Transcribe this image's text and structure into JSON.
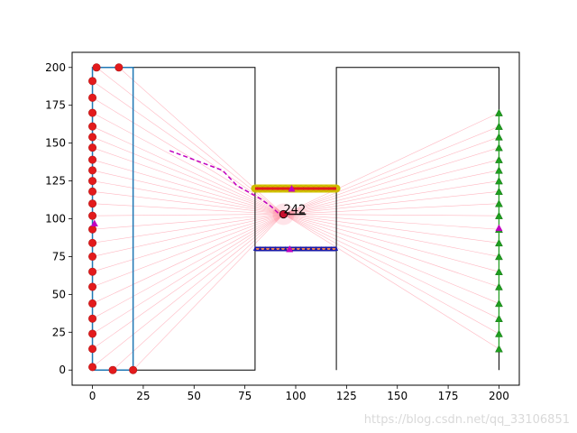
{
  "chart_data": {
    "type": "scatter",
    "title": "",
    "xlabel": "",
    "ylabel": "",
    "xlim": [
      -10,
      210
    ],
    "ylim": [
      -10,
      210
    ],
    "xticks": [
      0,
      25,
      50,
      75,
      100,
      125,
      150,
      175,
      200
    ],
    "yticks": [
      0,
      25,
      50,
      75,
      100,
      125,
      150,
      175,
      200
    ],
    "grid": false,
    "legend": false,
    "walls": [
      [
        [
          20,
          0
        ],
        [
          80,
          0
        ],
        [
          80,
          200
        ],
        [
          20,
          200
        ]
      ],
      [
        [
          80,
          120
        ],
        [
          120,
          120
        ]
      ],
      [
        [
          80,
          80
        ],
        [
          120,
          80
        ]
      ],
      [
        [
          120,
          0
        ],
        [
          120,
          200
        ],
        [
          200,
          200
        ],
        [
          200,
          0
        ]
      ]
    ],
    "blue_rectangle": [
      [
        0,
        0
      ],
      [
        20,
        0
      ],
      [
        20,
        200
      ],
      [
        0,
        200
      ],
      [
        0,
        0
      ]
    ],
    "red_points": [
      [
        0,
        2
      ],
      [
        0,
        14
      ],
      [
        0,
        24
      ],
      [
        0,
        34
      ],
      [
        0,
        44
      ],
      [
        0,
        55
      ],
      [
        0,
        65
      ],
      [
        0,
        75
      ],
      [
        0,
        84
      ],
      [
        0,
        93
      ],
      [
        0,
        102
      ],
      [
        0,
        110
      ],
      [
        0,
        118
      ],
      [
        0,
        125
      ],
      [
        0,
        132
      ],
      [
        0,
        139
      ],
      [
        0,
        147
      ],
      [
        0,
        154
      ],
      [
        0,
        161
      ],
      [
        0,
        170
      ],
      [
        0,
        180
      ],
      [
        0,
        191
      ],
      [
        2,
        200
      ],
      [
        13,
        200
      ],
      [
        10,
        0
      ],
      [
        20,
        0
      ]
    ],
    "green_points": [
      [
        200,
        14
      ],
      [
        200,
        24
      ],
      [
        200,
        34
      ],
      [
        200,
        44
      ],
      [
        200,
        55
      ],
      [
        200,
        65
      ],
      [
        200,
        75
      ],
      [
        200,
        84
      ],
      [
        200,
        93
      ],
      [
        200,
        102
      ],
      [
        200,
        110
      ],
      [
        200,
        118
      ],
      [
        200,
        125
      ],
      [
        200,
        132
      ],
      [
        200,
        139
      ],
      [
        200,
        147
      ],
      [
        200,
        154
      ],
      [
        200,
        161
      ],
      [
        200,
        170
      ]
    ],
    "yellow_segment": [
      [
        80,
        120
      ],
      [
        120,
        120
      ]
    ],
    "navy_segment": [
      [
        80,
        80
      ],
      [
        120,
        80
      ]
    ],
    "magenta_path": [
      [
        38,
        145
      ],
      [
        50,
        139
      ],
      [
        64,
        132
      ],
      [
        71,
        122
      ],
      [
        83,
        113
      ],
      [
        88,
        108
      ],
      [
        92,
        103
      ]
    ],
    "magenta_markers": [
      [
        1,
        97
      ],
      [
        98,
        120
      ],
      [
        97,
        80
      ],
      [
        200,
        94
      ]
    ],
    "current_point": [
      94,
      103
    ],
    "heading_segment": [
      [
        94,
        103
      ],
      [
        105,
        103
      ]
    ],
    "annotation": "242",
    "ray_origin": [
      94,
      103
    ],
    "colors": {
      "wall": "#000000",
      "rect": "#1f77b4",
      "red": "#e31a1c",
      "green": "#1f9f1f",
      "yellow": "#d4c300",
      "navy": "#1a1aa6",
      "magenta": "#c000c0",
      "ray": "#ff9aa8"
    },
    "watermark": "https://blog.csdn.net/qq_33106851"
  }
}
